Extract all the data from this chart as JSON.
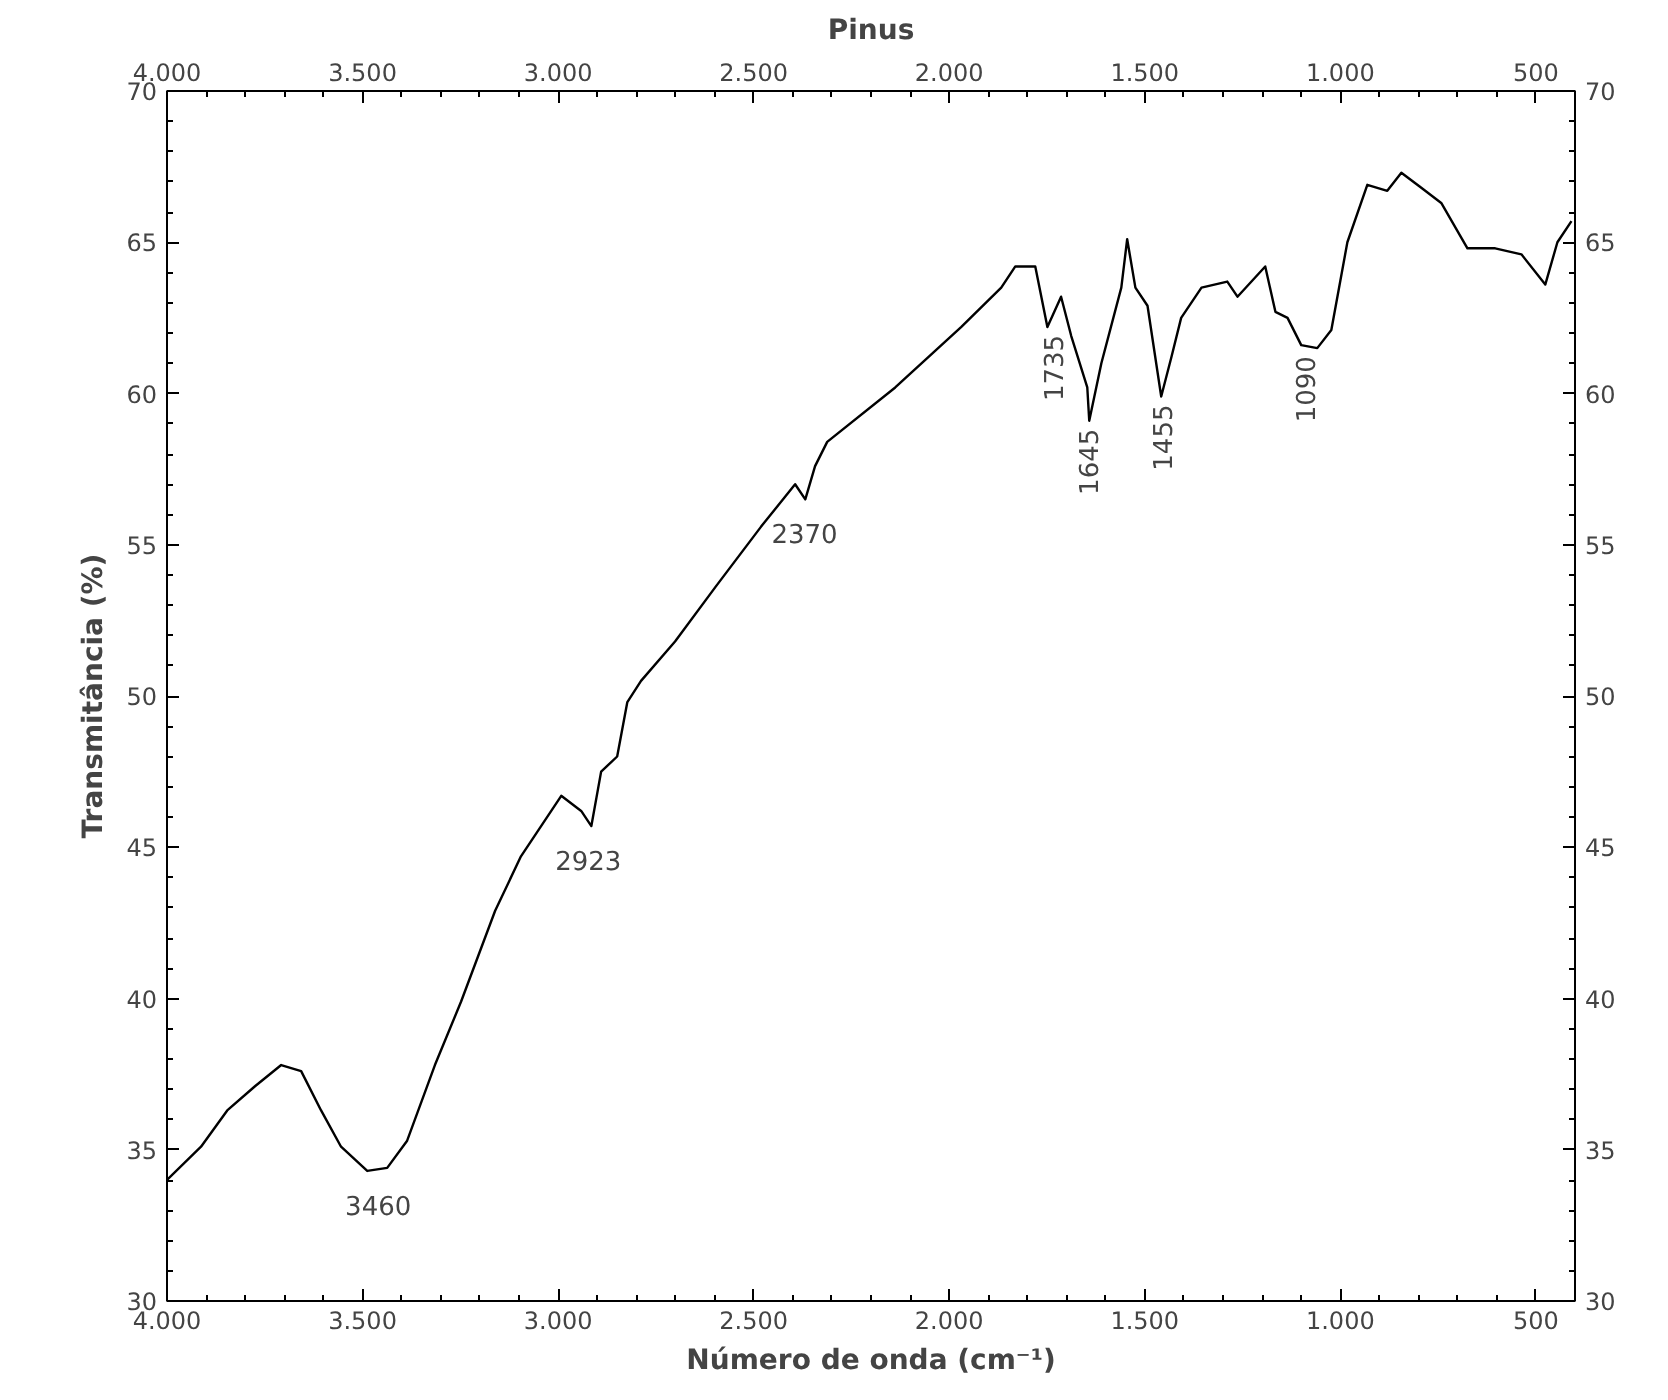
{
  "chart_data": {
    "type": "line",
    "title": "Pinus",
    "xlabel": "Número de onda (cm⁻¹)",
    "ylabel": "Transmitância (%)",
    "x": [
      4000,
      3913,
      3846,
      3775,
      3708,
      3657,
      3606,
      3555,
      3488,
      3437,
      3386,
      3315,
      3248,
      3161,
      3095,
      2992,
      2941,
      2915,
      2890,
      2849,
      2823,
      2788,
      2701,
      2598,
      2481,
      2394,
      2368,
      2343,
      2312,
      2138,
      1969,
      1867,
      1831,
      1780,
      1749,
      1714,
      1688,
      1647,
      1642,
      1611,
      1560,
      1545,
      1524,
      1493,
      1458,
      1432,
      1407,
      1355,
      1289,
      1263,
      1192,
      1166,
      1135,
      1100,
      1059,
      1023,
      982,
      931,
      880,
      844,
      793,
      742,
      675,
      604,
      537,
      476,
      445,
      409
    ],
    "series": [
      {
        "color": "#000000",
        "values": [
          34.0,
          35.1,
          36.3,
          37.1,
          37.8,
          37.6,
          36.3,
          35.1,
          34.3,
          34.4,
          35.3,
          37.8,
          39.9,
          42.9,
          44.7,
          46.7,
          46.2,
          45.7,
          47.5,
          48.0,
          49.8,
          50.5,
          51.8,
          53.6,
          55.6,
          57.0,
          56.5,
          57.6,
          58.4,
          60.2,
          62.2,
          63.5,
          64.2,
          64.2,
          62.2,
          63.2,
          61.9,
          60.2,
          59.1,
          61.0,
          63.5,
          65.1,
          63.5,
          62.9,
          59.9,
          61.2,
          62.5,
          63.5,
          63.7,
          63.2,
          64.2,
          62.7,
          62.5,
          61.6,
          61.5,
          62.1,
          65.0,
          66.9,
          66.7,
          67.3,
          66.8,
          66.3,
          64.8,
          64.8,
          64.6,
          63.6,
          65.0,
          65.7
        ]
      }
    ],
    "xlim": [
      4000,
      400
    ],
    "ylim": [
      30,
      70
    ],
    "xticks": [
      {
        "value": 4000,
        "label": "4.000"
      },
      {
        "value": 3500,
        "label": "3.500"
      },
      {
        "value": 3000,
        "label": "3.000"
      },
      {
        "value": 2500,
        "label": "2.500"
      },
      {
        "value": 2000,
        "label": "2.000"
      },
      {
        "value": 1500,
        "label": "1.500"
      },
      {
        "value": 1000,
        "label": "1.000"
      },
      500,
      {
        "value": 400,
        "label": null
      }
    ],
    "x2lim": [
      4000,
      400
    ],
    "x2ticks": [
      {
        "value": 4000,
        "label": "4.000"
      },
      {
        "value": 3500,
        "label": "3.500"
      },
      {
        "value": 3000,
        "label": "3.000"
      },
      {
        "value": 2500,
        "label": "2.500"
      },
      {
        "value": 2000,
        "label": "2.000"
      },
      {
        "value": 1500,
        "label": "1.500"
      },
      {
        "value": 1000,
        "label": "1.000"
      },
      500,
      {
        "value": 400,
        "label": null
      }
    ],
    "yticks": [
      30,
      35,
      40,
      45,
      50,
      55,
      60,
      65,
      70
    ],
    "y2lim": [
      30,
      70
    ],
    "y2ticks": [
      30,
      35,
      40,
      45,
      50,
      55,
      60,
      65,
      70
    ],
    "grid": false,
    "marker": "none",
    "line_style": "solid",
    "annotations": [
      {
        "text": "3460",
        "x": 3460,
        "y": 34.3
      },
      {
        "text": "2923",
        "x": 2923,
        "y": 45.7
      },
      {
        "text": "2370",
        "x": 2370,
        "y": 56.5
      },
      {
        "text": "1735",
        "x": 1735,
        "y": 62.2
      },
      {
        "text": "1645",
        "x": 1645,
        "y": 59.1
      },
      {
        "text": "1455",
        "x": 1455,
        "y": 59.9
      },
      {
        "text": "1090",
        "x": 1090,
        "y": 61.5
      }
    ]
  }
}
